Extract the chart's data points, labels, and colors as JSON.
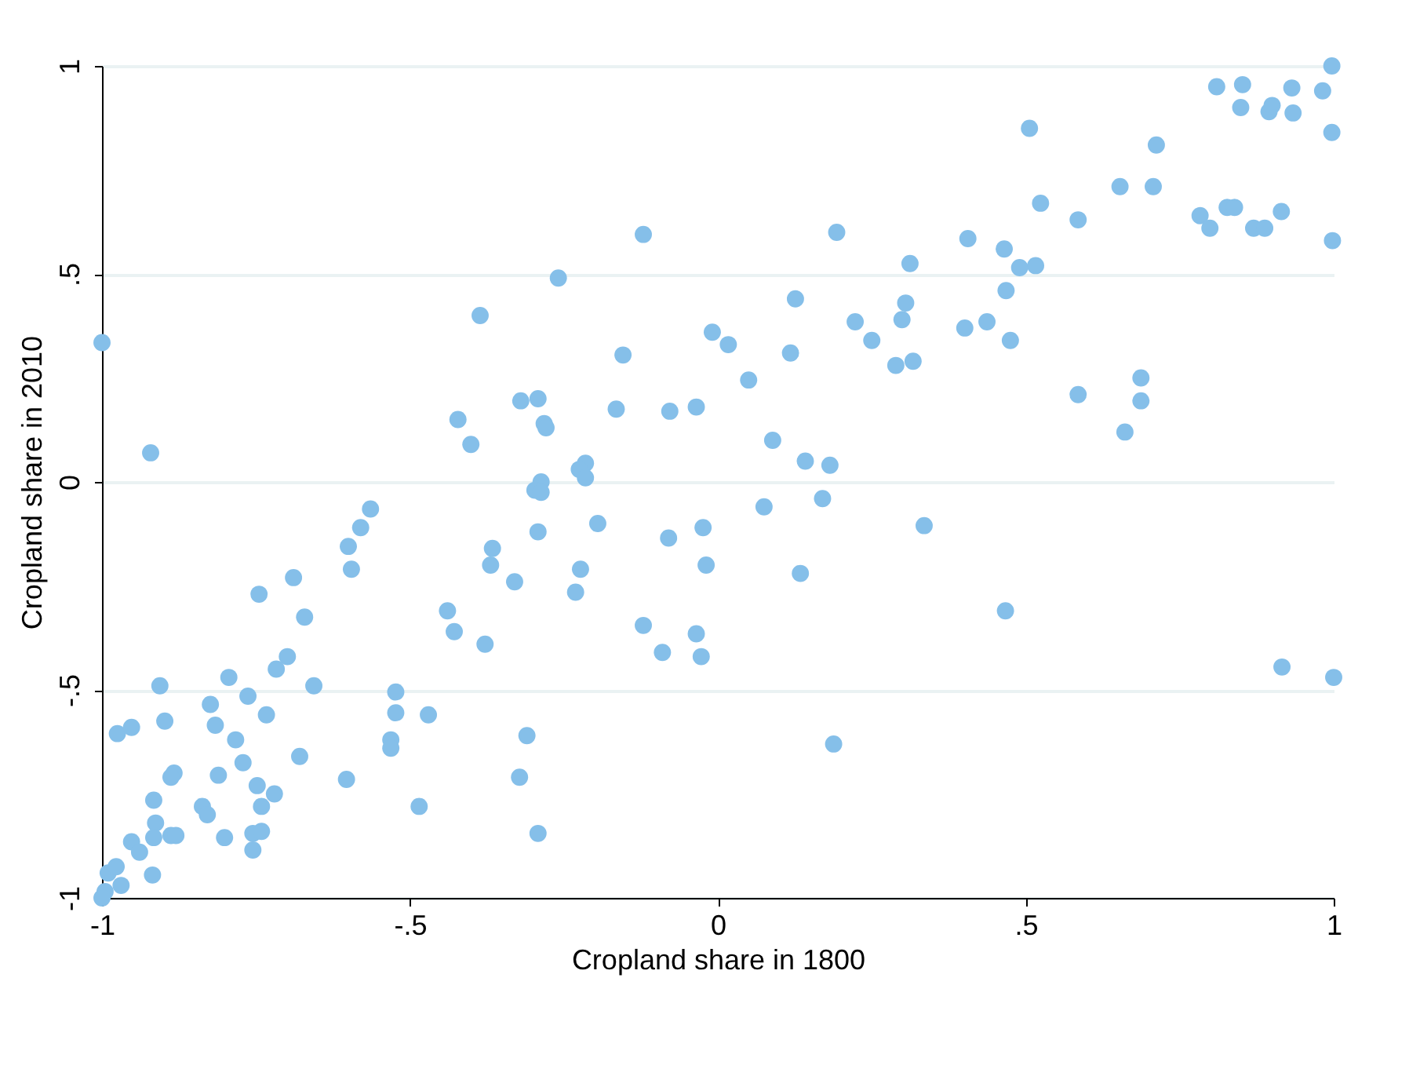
{
  "chart_data": {
    "type": "scatter",
    "xlabel": "Cropland share in 1800",
    "ylabel": "Cropland share in 2010",
    "xlim": [
      -1,
      1
    ],
    "ylim": [
      -1,
      1
    ],
    "xticks": [
      {
        "value": -1,
        "label": "-1"
      },
      {
        "value": -0.5,
        "label": "-.5"
      },
      {
        "value": 0,
        "label": "0"
      },
      {
        "value": 0.5,
        "label": ".5"
      },
      {
        "value": 1,
        "label": "1"
      }
    ],
    "yticks": [
      {
        "value": -1,
        "label": "-1"
      },
      {
        "value": -0.5,
        "label": "-.5"
      },
      {
        "value": 0,
        "label": "0"
      },
      {
        "value": 0.5,
        "label": ".5"
      },
      {
        "value": 1,
        "label": "1"
      }
    ],
    "grid": "y",
    "marker": "circle",
    "series": [
      {
        "color": "#85bfe9",
        "x": [
          0.81,
          0.852,
          0.849,
          0.895,
          0.9,
          0.932,
          0.934,
          0.982,
          0.997,
          0.997,
          0.506,
          0.712,
          0.653,
          0.707,
          0.524,
          0.585,
          0.783,
          0.799,
          0.827,
          0.839,
          0.87,
          0.888,
          0.915,
          0.998,
          0.406,
          0.465,
          0.49,
          0.516,
          0.468,
          0.475,
          0.401,
          0.437,
          0.312,
          0.305,
          0.299,
          0.289,
          0.317,
          0.223,
          0.25,
          0.193,
          0.126,
          0.118,
          0.05,
          -0.009,
          0.017,
          -0.035,
          0.089,
          0.142,
          0.182,
          0.17,
          0.075,
          0.585,
          0.687,
          0.687,
          0.661,
          -0.024,
          0.335,
          -0.019,
          0.134,
          0.467,
          -0.035,
          -0.027,
          0.916,
          1.0,
          0.188,
          -1.0,
          -0.921,
          -0.386,
          -0.259,
          -0.121,
          -0.154,
          -0.32,
          -0.292,
          -0.422,
          -0.282,
          -0.279,
          -0.401,
          -0.165,
          -0.078,
          -0.215,
          -0.225,
          -0.215,
          -0.287,
          -0.297,
          -0.287,
          -0.564,
          -0.58,
          -0.6,
          -0.595,
          -0.745,
          -0.689,
          -0.671,
          -0.699,
          -0.717,
          -0.656,
          -0.794,
          -0.906,
          -0.824,
          -0.763,
          -0.733,
          -0.898,
          -0.816,
          -0.975,
          -0.952,
          -0.783,
          -0.771,
          -0.679,
          -0.811,
          -0.883,
          -0.888,
          -0.748,
          -0.72,
          -0.741,
          -0.916,
          -0.837,
          -0.829,
          -0.913,
          -0.952,
          -0.939,
          -0.916,
          -0.888,
          -0.88,
          -0.801,
          -0.755,
          -0.741,
          -0.755,
          -0.918,
          -0.99,
          -0.977,
          -0.969,
          -0.995,
          -1.0,
          -0.603,
          -0.485,
          -0.439,
          -0.428,
          -0.378,
          -0.523,
          -0.523,
          -0.47,
          -0.531,
          -0.531,
          -0.366,
          -0.369,
          -0.33,
          -0.292,
          -0.195,
          -0.223,
          -0.231,
          -0.08,
          -0.121,
          -0.09,
          -0.31,
          -0.322,
          -0.292
        ],
        "values": [
          0.95,
          0.955,
          0.9,
          0.89,
          0.905,
          0.947,
          0.887,
          0.94,
          1.0,
          0.84,
          0.85,
          0.81,
          0.71,
          0.71,
          0.67,
          0.63,
          0.64,
          0.61,
          0.66,
          0.66,
          0.61,
          0.61,
          0.65,
          0.58,
          0.585,
          0.56,
          0.515,
          0.52,
          0.46,
          0.34,
          0.37,
          0.385,
          0.525,
          0.43,
          0.39,
          0.28,
          0.29,
          0.385,
          0.34,
          0.6,
          0.44,
          0.31,
          0.245,
          0.36,
          0.33,
          0.18,
          0.1,
          0.05,
          0.04,
          -0.04,
          -0.06,
          0.21,
          0.25,
          0.195,
          0.12,
          -0.11,
          -0.105,
          -0.2,
          -0.22,
          -0.31,
          -0.365,
          -0.42,
          -0.445,
          -0.47,
          -0.63,
          0.335,
          0.07,
          0.4,
          0.49,
          0.595,
          0.305,
          0.195,
          0.2,
          0.15,
          0.14,
          0.13,
          0.09,
          0.175,
          0.17,
          0.045,
          0.03,
          0.01,
          0.0,
          -0.02,
          -0.025,
          -0.065,
          -0.11,
          -0.155,
          -0.21,
          -0.27,
          -0.23,
          -0.325,
          -0.42,
          -0.45,
          -0.49,
          -0.47,
          -0.49,
          -0.535,
          -0.515,
          -0.56,
          -0.575,
          -0.585,
          -0.605,
          -0.59,
          -0.62,
          -0.675,
          -0.66,
          -0.705,
          -0.7,
          -0.71,
          -0.73,
          -0.75,
          -0.78,
          -0.765,
          -0.78,
          -0.8,
          -0.82,
          -0.865,
          -0.89,
          -0.855,
          -0.85,
          -0.85,
          -0.855,
          -0.845,
          -0.84,
          -0.885,
          -0.945,
          -0.94,
          -0.925,
          -0.97,
          -0.985,
          -1.0,
          -0.715,
          -0.78,
          -0.31,
          -0.36,
          -0.39,
          -0.505,
          -0.555,
          -0.56,
          -0.62,
          -0.64,
          -0.16,
          -0.2,
          -0.24,
          -0.12,
          -0.1,
          -0.21,
          -0.265,
          -0.135,
          -0.345,
          -0.41,
          -0.61,
          -0.71,
          -0.845
        ]
      }
    ]
  }
}
